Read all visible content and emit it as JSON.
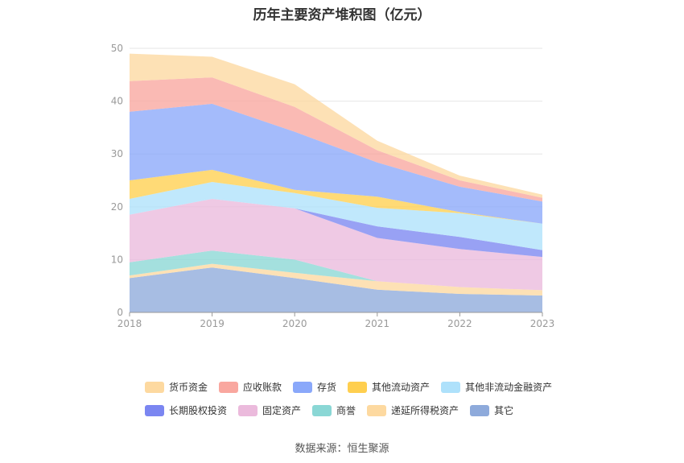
{
  "chart_data": {
    "type": "area",
    "stacked": true,
    "title": "历年主要资产堆积图（亿元）",
    "x": [
      "2018",
      "2019",
      "2020",
      "2021",
      "2022",
      "2023"
    ],
    "ylim": [
      0,
      50
    ],
    "yticks": [
      "0",
      "10",
      "20",
      "30",
      "40",
      "50"
    ],
    "grid": true,
    "legend_position": "bottom",
    "series": [
      {
        "name": "其它",
        "color": "#8eaadb",
        "values": [
          6.5,
          8.5,
          6.5,
          4.3,
          3.5,
          3.2
        ]
      },
      {
        "name": "递延所得税资产",
        "color": "#fdd9a0",
        "values": [
          0.5,
          0.7,
          1.0,
          1.6,
          1.3,
          1.0
        ]
      },
      {
        "name": "商誉",
        "color": "#8ad7d5",
        "values": [
          2.5,
          2.5,
          2.5,
          0.0,
          0.0,
          0.0
        ]
      },
      {
        "name": "固定资产",
        "color": "#ebbadc",
        "values": [
          9.0,
          9.8,
          9.7,
          8.2,
          7.2,
          6.3
        ]
      },
      {
        "name": "长期股权投资",
        "color": "#7b86f1",
        "values": [
          0.0,
          0.0,
          0.0,
          2.2,
          2.3,
          1.3
        ]
      },
      {
        "name": "其他非流动金融资产",
        "color": "#aee1fb",
        "values": [
          3.0,
          3.2,
          2.9,
          3.5,
          4.5,
          5.0
        ]
      },
      {
        "name": "其他流动资产",
        "color": "#ffcf4f",
        "values": [
          3.5,
          2.3,
          0.6,
          2.1,
          0.2,
          0.0
        ]
      },
      {
        "name": "存货",
        "color": "#8aa8fa",
        "values": [
          13.0,
          12.5,
          11.0,
          6.5,
          4.8,
          4.2
        ]
      },
      {
        "name": "应收账款",
        "color": "#f9a79f",
        "values": [
          5.8,
          5.0,
          4.7,
          2.3,
          1.2,
          0.7
        ]
      },
      {
        "name": "货币资金",
        "color": "#fdd9a0",
        "values": [
          5.2,
          3.9,
          4.3,
          1.8,
          0.9,
          0.6
        ]
      }
    ]
  },
  "legend": {
    "row1": [
      "货币资金",
      "应收账款",
      "存货",
      "其他流动资产",
      "其他非流动金融资产"
    ],
    "row2": [
      "长期股权投资",
      "固定资产",
      "商誉",
      "递延所得税资产",
      "其它"
    ]
  },
  "source": "数据来源：恒生聚源"
}
